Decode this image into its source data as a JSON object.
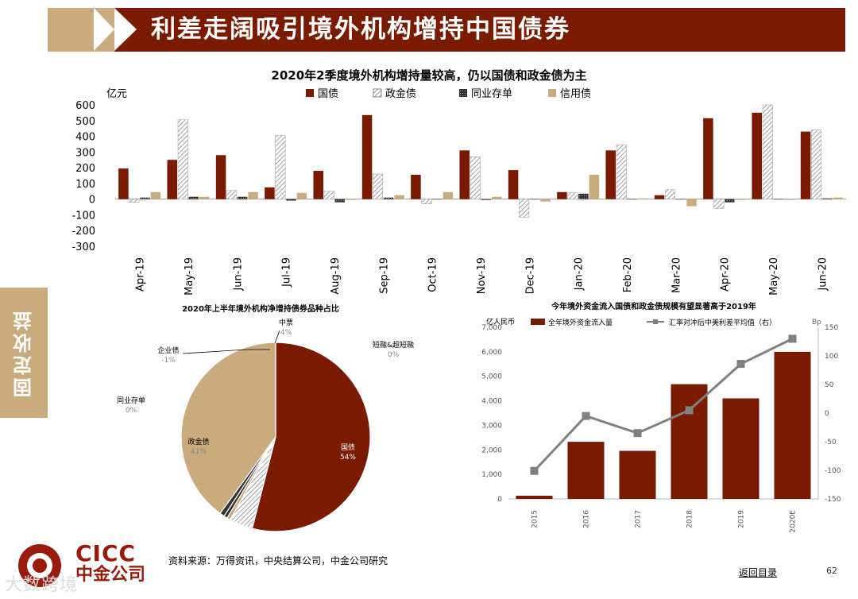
{
  "header": {
    "title": "利差走阔吸引境外机构增持中国债券"
  },
  "side_tab": {
    "label": "固定收益"
  },
  "footer": {
    "source": "资料来源：万得资讯，中央结算公司，中金公司研究",
    "back_link": "返回目录",
    "page_number": "62",
    "logo_en": "CICC",
    "logo_cn": "中金公司",
    "watermark": "大数跨境"
  },
  "colors": {
    "maroon": "#7a1a00",
    "tan": "#c9ab7e",
    "dark": "#333333",
    "gray": "#808080"
  },
  "chart_data": [
    {
      "type": "bar",
      "title": "2020年2季度境外机构增持量较高，仍以国债和政金债为主",
      "ylabel": "亿元",
      "ylim": [
        -300,
        600
      ],
      "yticks": [
        600,
        500,
        400,
        300,
        200,
        100,
        0,
        -100,
        -200,
        -300
      ],
      "categories": [
        "Apr-19",
        "May-19",
        "Jun-19",
        "Jul-19",
        "Aug-19",
        "Sep-19",
        "Oct-19",
        "Nov-19",
        "Dec-19",
        "Jan-20",
        "Feb-20",
        "Mar-20",
        "Apr-20",
        "May-20",
        "Jun-20"
      ],
      "legend_position": "top",
      "series": [
        {
          "name": "国债",
          "color": "#7a1a00",
          "pattern": "solid",
          "values": [
            195,
            250,
            280,
            75,
            180,
            535,
            155,
            310,
            185,
            45,
            310,
            25,
            515,
            550,
            430
          ]
        },
        {
          "name": "政金债",
          "color": "#999999",
          "pattern": "hatch",
          "values": [
            -20,
            505,
            55,
            405,
            50,
            160,
            -30,
            270,
            -115,
            40,
            345,
            60,
            -60,
            600,
            440
          ]
        },
        {
          "name": "同业存单",
          "color": "#333333",
          "pattern": "dots",
          "values": [
            10,
            15,
            15,
            -10,
            -20,
            10,
            0,
            -5,
            0,
            35,
            0,
            0,
            -20,
            0,
            5
          ]
        },
        {
          "name": "信用债",
          "color": "#c9ab7e",
          "pattern": "solid",
          "values": [
            45,
            15,
            45,
            40,
            -5,
            25,
            45,
            15,
            -15,
            155,
            5,
            -45,
            -5,
            -5,
            10
          ]
        }
      ]
    },
    {
      "type": "pie",
      "title": "2020年上半年境外机构净增持债券品种占比",
      "slices": [
        {
          "name": "国债",
          "value": 54,
          "label": "54%",
          "color": "#7a1a00"
        },
        {
          "name": "中票",
          "value": 4,
          "label": "4%",
          "color": "#999999"
        },
        {
          "name": "短融&超短融",
          "value": 0,
          "label": "0%",
          "color": "#c9ab7e"
        },
        {
          "name": "同业存单",
          "value": 0,
          "label": "0%",
          "color": "#333333"
        },
        {
          "name": "企业债",
          "value": -1,
          "label": "-1%",
          "color": "#333333"
        },
        {
          "name": "政金债",
          "value": 41,
          "label": "41%",
          "color": "#c9ab7e"
        }
      ]
    },
    {
      "type": "bar",
      "title": "今年境外资金流入国债和政金债规模有望显著高于2019年",
      "ylabel_left": "亿人民币",
      "ylabel_right": "Bp",
      "ylim_left": [
        0,
        7000
      ],
      "yticks_left": [
        "0",
        "1,000",
        "2,000",
        "3,000",
        "4,000",
        "5,000",
        "6,000",
        "7,000"
      ],
      "ylim_right": [
        -150,
        150
      ],
      "yticks_right": [
        "-150",
        "-100",
        "-50",
        "0",
        "50",
        "100",
        "150"
      ],
      "categories": [
        "2015",
        "2016",
        "2017",
        "2018",
        "2019",
        "2020E"
      ],
      "legend_position": "top",
      "series": [
        {
          "name": "全年境外资金流入量",
          "type": "bar",
          "axis": "left",
          "color": "#7a1a00",
          "values": [
            130,
            2330,
            1960,
            4680,
            4100,
            6000
          ]
        },
        {
          "name": "汇率对冲后中美利差平均值（右）",
          "type": "line",
          "axis": "right",
          "color": "#808080",
          "values": [
            -101,
            -5,
            -35,
            5,
            86,
            130
          ]
        }
      ]
    }
  ]
}
